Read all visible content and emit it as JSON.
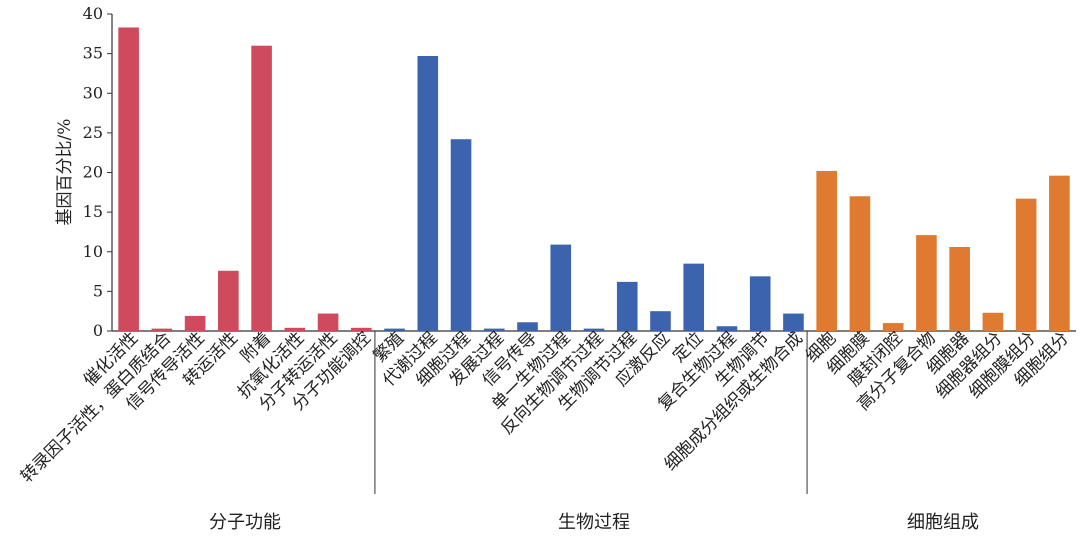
{
  "chart_data": {
    "type": "bar",
    "ylabel": "基因百分比/%",
    "ylim": [
      0,
      40
    ],
    "yticks": [
      0,
      5,
      10,
      15,
      20,
      25,
      30,
      35,
      40
    ],
    "groups": [
      {
        "name": "分子功能",
        "color": "#cf4a5c",
        "categories": [
          "催化活性",
          "转录因子活性，蛋白质结合",
          "信号传导活性",
          "转运活性",
          "附着",
          "抗氧化活性",
          "分子转运活性",
          "分子功能调控"
        ],
        "values": [
          38.3,
          0.3,
          1.9,
          7.6,
          36.0,
          0.4,
          2.2,
          0.4
        ]
      },
      {
        "name": "生物过程",
        "color": "#3c63ad",
        "categories": [
          "繁殖",
          "代谢过程",
          "细胞过程",
          "发展过程",
          "信号传导",
          "单一生物过程",
          "反向生物调节过程",
          "生物调节过程",
          "应激反应",
          "定位",
          "复合生物过程",
          "生物调节",
          "细胞成分组织或生物合成"
        ],
        "values": [
          0.3,
          34.7,
          24.2,
          0.3,
          1.1,
          10.9,
          0.3,
          6.2,
          2.5,
          8.5,
          0.6,
          6.9,
          2.2
        ]
      },
      {
        "name": "细胞组成",
        "color": "#e07a30",
        "categories": [
          "细胞",
          "细胞膜",
          "膜封闭腔",
          "高分子复合物",
          "细胞器",
          "细胞器组分",
          "细胞膜组分",
          "细胞组分"
        ],
        "values": [
          20.2,
          17.0,
          1.0,
          12.1,
          10.6,
          2.3,
          16.7,
          19.6
        ]
      }
    ]
  }
}
